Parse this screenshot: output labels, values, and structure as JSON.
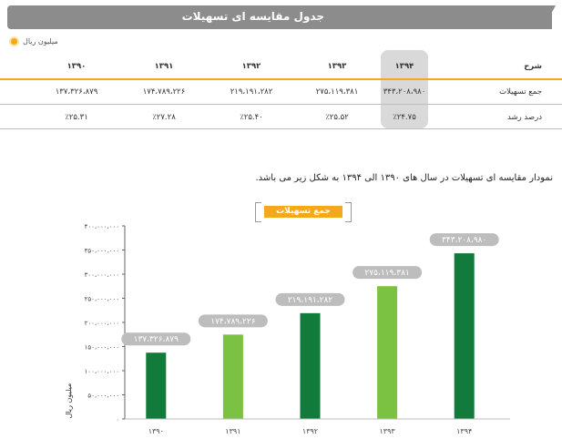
{
  "header": {
    "title": "جدول مقایسه ای تسهیلات"
  },
  "unit_note": "میلیون ریال",
  "table": {
    "headers": [
      "شرح",
      "۱۳۹۴",
      "۱۳۹۳",
      "۱۳۹۲",
      "۱۳۹۱",
      "۱۳۹۰"
    ],
    "rows": [
      {
        "label": "جمع تسهیلات",
        "cells": [
          "۳۴۳،۲۰۸،۹۸۰",
          "۲۷۵،۱۱۹،۳۸۱",
          "۲۱۹،۱۹۱،۲۸۲",
          "۱۷۴،۷۸۹،۲۲۶",
          "۱۳۷،۳۲۶،۸۷۹"
        ]
      },
      {
        "label": "درصد رشد",
        "cells": [
          "٪۲۴.۷۵",
          "٪۲۵.۵۲",
          "٪۲۵.۴۰",
          "٪۲۷.۲۸",
          "٪۲۵.۳۱"
        ]
      }
    ]
  },
  "description": "نمودار مقایسه ای تسهیلات در سال های ۱۳۹۰ الی ۱۳۹۴ به شکل زیر می باشد.",
  "colors": {
    "dark_green": "#127a3a",
    "light_green": "#7cc242",
    "orange": "#f4a91c",
    "label_box": "#bdbdbd"
  },
  "chart_data": {
    "type": "bar",
    "title": "جمع تسهیلات",
    "ylabel": "میلیون ریال",
    "xlabel": "",
    "categories": [
      "۱۳۹۰",
      "۱۳۹۱",
      "۱۳۹۲",
      "۱۳۹۳",
      "۱۳۹۴"
    ],
    "values": [
      137326879,
      174789226,
      219191282,
      275119381,
      343208980
    ],
    "data_labels": [
      "۱۳۷،۳۲۶،۸۷۹",
      "۱۷۴،۷۸۹،۲۲۶",
      "۲۱۹،۱۹۱،۲۸۲",
      "۲۷۵،۱۱۹،۳۸۱",
      "۳۴۳،۲۰۸،۹۸۰"
    ],
    "bar_colors": [
      "#127a3a",
      "#7cc242",
      "#127a3a",
      "#7cc242",
      "#127a3a"
    ],
    "ylim": [
      0,
      400000000
    ],
    "yticks": [
      0,
      50000000,
      100000000,
      150000000,
      200000000,
      250000000,
      300000000,
      350000000,
      400000000
    ],
    "ytick_labels": [
      "۰",
      "۵۰،۰۰۰،۰۰۰",
      "۱۰۰،۰۰۰،۰۰۰",
      "۱۵۰،۰۰۰،۰۰۰",
      "۲۰۰،۰۰۰،۰۰۰",
      "۲۵۰،۰۰۰،۰۰۰",
      "۳۰۰،۰۰۰،۰۰۰",
      "۳۵۰،۰۰۰،۰۰۰",
      "۴۰۰،۰۰۰،۰۰۰"
    ],
    "grid": false,
    "legend": "top-center"
  }
}
